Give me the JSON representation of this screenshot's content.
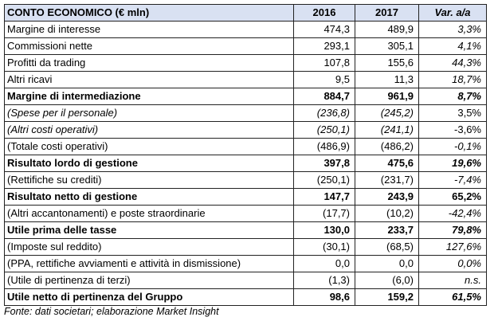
{
  "table": {
    "header": {
      "title": "CONTO ECONOMICO (€ mln)",
      "y1": "2016",
      "y2": "2017",
      "var": "Var. a/a"
    },
    "rows": [
      {
        "label": "Margine di interesse",
        "v2016": "474,3",
        "v2017": "489,9",
        "var": "3,3%",
        "bold": false,
        "label_italic": false,
        "var_italic": true
      },
      {
        "label": "Commissioni nette",
        "v2016": "293,1",
        "v2017": "305,1",
        "var": "4,1%",
        "bold": false,
        "label_italic": false,
        "var_italic": true
      },
      {
        "label": "Profitti da trading",
        "v2016": "107,8",
        "v2017": "155,6",
        "var": "44,3%",
        "bold": false,
        "label_italic": false,
        "var_italic": true
      },
      {
        "label": "Altri ricavi",
        "v2016": "9,5",
        "v2017": "11,3",
        "var": "18,7%",
        "bold": false,
        "label_italic": false,
        "var_italic": true
      },
      {
        "label": "Margine di intermediazione",
        "v2016": "884,7",
        "v2017": "961,9",
        "var": "8,7%",
        "bold": true,
        "label_italic": false,
        "var_italic": true
      },
      {
        "label": "(Spese per il personale)",
        "v2016": "(236,8)",
        "v2017": "(245,2)",
        "var": "3,5%",
        "bold": false,
        "label_italic": true,
        "var_italic": false
      },
      {
        "label": "(Altri costi operativi)",
        "v2016": "(250,1)",
        "v2017": "(241,1)",
        "var": "-3,6%",
        "bold": false,
        "label_italic": true,
        "var_italic": false
      },
      {
        "label": "(Totale costi operativi)",
        "v2016": "(486,9)",
        "v2017": "(486,2)",
        "var": "-0,1%",
        "bold": false,
        "label_italic": false,
        "var_italic": true
      },
      {
        "label": "Risultato lordo di gestione",
        "v2016": "397,8",
        "v2017": "475,6",
        "var": "19,6%",
        "bold": true,
        "label_italic": false,
        "var_italic": true
      },
      {
        "label": "(Rettifiche su crediti)",
        "v2016": "(250,1)",
        "v2017": "(231,7)",
        "var": "-7,4%",
        "bold": false,
        "label_italic": false,
        "var_italic": true
      },
      {
        "label": "Risultato netto di gestione",
        "v2016": "147,7",
        "v2017": "243,9",
        "var": "65,2%",
        "bold": true,
        "label_italic": false,
        "var_italic": false
      },
      {
        "label": "(Altri accantonamenti) e poste straordinarie",
        "v2016": "(17,7)",
        "v2017": "(10,2)",
        "var": "-42,4%",
        "bold": false,
        "label_italic": false,
        "var_italic": true
      },
      {
        "label": "Utile prima delle tasse",
        "v2016": "130,0",
        "v2017": "233,7",
        "var": "79,8%",
        "bold": true,
        "label_italic": false,
        "var_italic": true
      },
      {
        "label": "(Imposte sul reddito)",
        "v2016": "(30,1)",
        "v2017": "(68,5)",
        "var": "127,6%",
        "bold": false,
        "label_italic": false,
        "var_italic": true
      },
      {
        "label": "(PPA, rettifiche avviamenti e attività in dismissione)",
        "v2016": "0,0",
        "v2017": "0,0",
        "var": "0,0%",
        "bold": false,
        "label_italic": false,
        "var_italic": true
      },
      {
        "label": "(Utile di pertinenza di terzi)",
        "v2016": "(1,3)",
        "v2017": "(6,0)",
        "var": "n.s.",
        "bold": false,
        "label_italic": false,
        "var_italic": true
      },
      {
        "label": "Utile netto di pertinenza del Gruppo",
        "v2016": "98,6",
        "v2017": "159,2",
        "var": "61,5%",
        "bold": true,
        "label_italic": false,
        "var_italic": true
      }
    ]
  },
  "source": "Fonte: dati societari; elaborazione Market Insight",
  "colors": {
    "header_bg": "#d9e1f2",
    "border": "#222222"
  }
}
